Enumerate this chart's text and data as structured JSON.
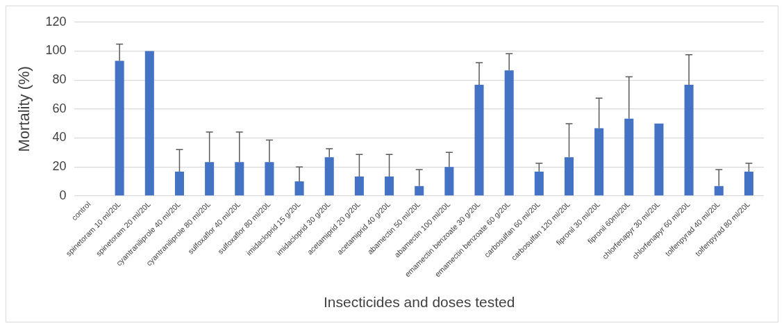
{
  "chart_data": {
    "type": "bar",
    "xlabel": "Insecticides and doses tested",
    "ylabel": "Mortality (%)",
    "categories": [
      "control",
      "spinetoram 10 ml/20L",
      "spinetoram 20 ml/20L",
      "cyantraniliprole 40 ml/20L",
      "cyantraniliprole 80 ml/20L",
      "sulfoxaflor 40 ml/20L",
      "sulfoxaflor 80 ml/20L",
      "imidacloprid 15 g/20L",
      "imidacloprid 30 g/20L",
      "acetamiprid 20 g/20L",
      "acetamiprid 40 g/20L",
      "abamectin 50 ml/20L",
      "abamectin 100 ml/20L",
      "emamectin benzoate 30 g/20L",
      "emamectin benzoate 60 g/20L",
      "carbosulfan 60 ml/20L",
      "carbosulfan 120 ml/20L",
      "fipronil 30 ml/20L",
      "fipronil 60ml/20L",
      "chlorfenapyr 30 ml/20L",
      "chlorfenapyr 60 ml/20L",
      "tolfenpyrad 40 ml/20L",
      "tolfenpyrad 80 ml/20L"
    ],
    "values": [
      0,
      93.3,
      100,
      16.7,
      23.3,
      23.3,
      23.3,
      10,
      26.7,
      13.3,
      13.3,
      6.7,
      20,
      76.7,
      86.7,
      16.7,
      26.7,
      46.7,
      53.3,
      50,
      76.7,
      6.7,
      16.7
    ],
    "errors": [
      null,
      [
        93.3,
        104.8
      ],
      null,
      [
        16.7,
        32
      ],
      [
        23.3,
        44.1
      ],
      [
        23.3,
        44.1
      ],
      [
        23.3,
        38.6
      ],
      [
        10,
        20
      ],
      [
        26.7,
        32.5
      ],
      [
        13.3,
        28.6
      ],
      [
        13.3,
        28.6
      ],
      [
        6.7,
        18.2
      ],
      [
        20,
        30
      ],
      [
        76.7,
        92
      ],
      [
        86.7,
        98.2
      ],
      [
        16.7,
        22.5
      ],
      [
        26.7,
        49.8
      ],
      [
        46.7,
        67.5
      ],
      [
        53.3,
        82.2
      ],
      null,
      [
        76.7,
        97.5
      ],
      [
        6.7,
        18.2
      ],
      [
        16.7,
        22.5
      ]
    ],
    "color": "#4472c4",
    "ylim": [
      0,
      120
    ],
    "yticks": [
      0,
      20,
      40,
      60,
      80,
      100,
      120
    ],
    "grid": "y",
    "legend": false
  }
}
